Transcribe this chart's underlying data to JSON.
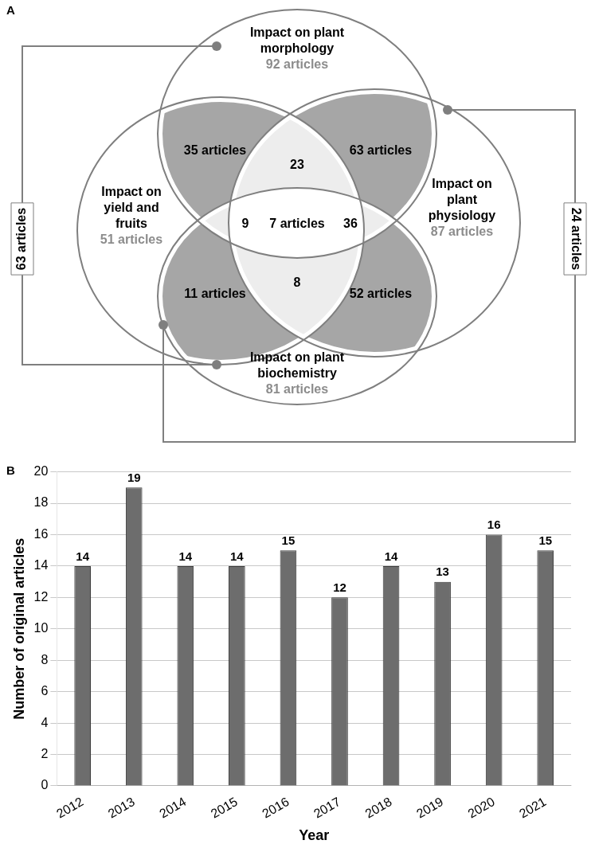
{
  "chart_data": [
    {
      "type": "other",
      "title": "A",
      "categories": [
        "Impact on plant morphology",
        "Impact on plant physiology",
        "Impact on plant biochemistry",
        "Impact on yield and fruits"
      ],
      "annotations": [
        "92 articles",
        "87 articles",
        "81 articles",
        "51 articles",
        "35 articles",
        "63 articles",
        "11 articles",
        "52 articles",
        "23",
        "9",
        "7 articles",
        "36",
        "8",
        "63 articles",
        "24 articles"
      ]
    },
    {
      "type": "bar",
      "title": "B",
      "categories": [
        "2012",
        "2013",
        "2014",
        "2015",
        "2016",
        "2017",
        "2018",
        "2019",
        "2020",
        "2021"
      ],
      "values": [
        14,
        19,
        14,
        14,
        15,
        12,
        14,
        13,
        16,
        15
      ],
      "color": "#6d6d6d",
      "data_labels": true,
      "xlabel": "Year",
      "ylabel": "Number of original articles",
      "ylim": [
        0,
        20
      ],
      "yticks": [
        0,
        2,
        4,
        6,
        8,
        10,
        12,
        14,
        16,
        18,
        20
      ],
      "grid": "y"
    }
  ]
}
